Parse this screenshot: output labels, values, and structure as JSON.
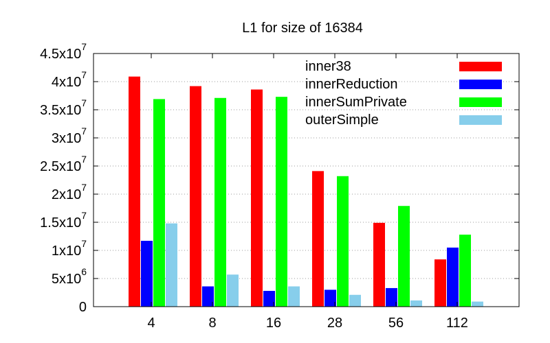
{
  "chart_data": {
    "type": "bar",
    "title": "L1 for size of 16384",
    "xlabel": "",
    "ylabel": "",
    "categories": [
      "4",
      "8",
      "16",
      "28",
      "56",
      "112"
    ],
    "ylim": [
      0,
      45000000
    ],
    "yticks": [
      {
        "value": 0,
        "mantissa": "0",
        "exp": ""
      },
      {
        "value": 5000000,
        "mantissa": "5x10",
        "exp": "6"
      },
      {
        "value": 10000000,
        "mantissa": "1x10",
        "exp": "7"
      },
      {
        "value": 15000000,
        "mantissa": "1.5x10",
        "exp": "7"
      },
      {
        "value": 20000000,
        "mantissa": "2x10",
        "exp": "7"
      },
      {
        "value": 25000000,
        "mantissa": "2.5x10",
        "exp": "7"
      },
      {
        "value": 30000000,
        "mantissa": "3x10",
        "exp": "7"
      },
      {
        "value": 35000000,
        "mantissa": "3.5x10",
        "exp": "7"
      },
      {
        "value": 40000000,
        "mantissa": "4x10",
        "exp": "7"
      },
      {
        "value": 45000000,
        "mantissa": "4.5x10",
        "exp": "7"
      }
    ],
    "grid": true,
    "legend_position": "top-right",
    "series": [
      {
        "name": "inner38",
        "color": "#ff0000",
        "values": [
          40900000,
          39200000,
          38600000,
          24100000,
          14900000,
          8400000
        ]
      },
      {
        "name": "innerReduction",
        "color": "#0000ff",
        "values": [
          11700000,
          3600000,
          2800000,
          3000000,
          3300000,
          10500000
        ]
      },
      {
        "name": "innerSumPrivate",
        "color": "#00ff00",
        "values": [
          36900000,
          37100000,
          37300000,
          23200000,
          17900000,
          12800000
        ]
      },
      {
        "name": "outerSimple",
        "color": "#87ceeb",
        "values": [
          14800000,
          5700000,
          3600000,
          2100000,
          1100000,
          900000
        ]
      }
    ]
  }
}
